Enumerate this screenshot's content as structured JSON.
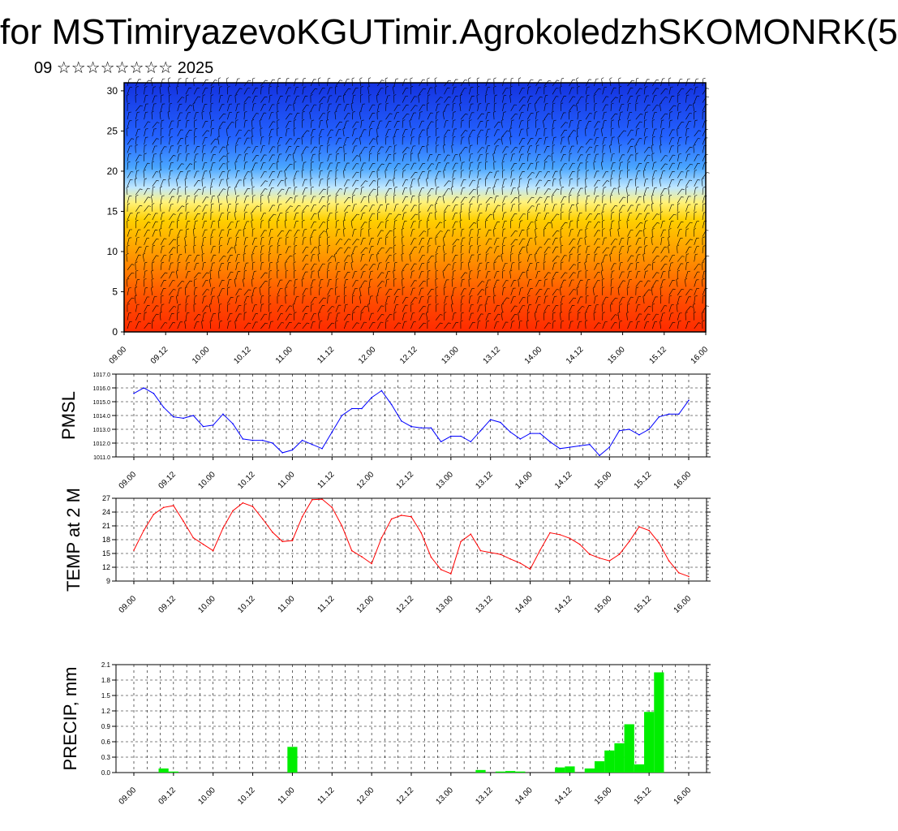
{
  "header": {
    "title": "for MSTimiryazevoKGUTimir.AgrokoledzhSKOMONRK(5",
    "subtitle": "09 ☆☆☆☆☆☆☆☆ 2025"
  },
  "chart_data": [
    {
      "id": "cross_section",
      "type": "heatmap",
      "ylim": [
        0,
        31
      ],
      "yticks": [
        "0",
        "5",
        "10",
        "15",
        "20",
        "25",
        "30"
      ],
      "xticks": [
        "09.00",
        "09.12",
        "10.00",
        "10.12",
        "11.00",
        "11.12",
        "12.00",
        "12.12",
        "13.00",
        "13.12",
        "14.00",
        "14.12",
        "15.00",
        "15.12",
        "16.00"
      ],
      "colors": {
        "low_level": "#ff2a00",
        "mid_level": "#ffd000",
        "high_level": "#1432e0",
        "wind_barbs": "#000000"
      }
    },
    {
      "id": "pmsl",
      "type": "line",
      "ylabel": "PMSL",
      "ylim": [
        1011.0,
        1017.0
      ],
      "yticks": [
        "1011.0",
        "1012.0",
        "1013.0",
        "1014.0",
        "1015.0",
        "1016.0",
        "1017.0"
      ],
      "xticks": [
        "09.00",
        "09.12",
        "10.00",
        "10.12",
        "11.00",
        "11.12",
        "12.00",
        "12.12",
        "13.00",
        "13.12",
        "14.00",
        "14.12",
        "15.00",
        "15.12",
        "16.00"
      ],
      "color": "#0000ff",
      "values": [
        1015.6,
        1016.0,
        1015.6,
        1014.6,
        1013.9,
        1013.8,
        1014.0,
        1013.2,
        1013.3,
        1014.1,
        1013.4,
        1012.3,
        1012.2,
        1012.2,
        1012.0,
        1011.3,
        1011.5,
        1012.2,
        1011.9,
        1011.6,
        1012.8,
        1014.0,
        1014.5,
        1014.5,
        1015.3,
        1015.8,
        1014.8,
        1013.6,
        1013.2,
        1013.1,
        1013.1,
        1012.1,
        1012.5,
        1012.5,
        1012.1,
        1012.9,
        1013.7,
        1013.5,
        1012.8,
        1012.3,
        1012.7,
        1012.7,
        1012.1,
        1011.6,
        1011.7,
        1011.8,
        1011.9,
        1011.1,
        1011.7,
        1012.9,
        1013.0,
        1012.6,
        1013.0,
        1013.9,
        1014.1,
        1014.1,
        1015.1
      ]
    },
    {
      "id": "temp2m",
      "type": "line",
      "ylabel": "TEMP at 2 M",
      "ylim": [
        9,
        27
      ],
      "yticks": [
        "9",
        "12",
        "15",
        "18",
        "21",
        "24",
        "27"
      ],
      "xticks": [
        "09.00",
        "09.12",
        "10.00",
        "10.12",
        "11.00",
        "11.12",
        "12.00",
        "12.12",
        "13.00",
        "13.12",
        "14.00",
        "14.12",
        "15.00",
        "15.12",
        "16.00"
      ],
      "color": "#ff0000",
      "values": [
        15.7,
        20.0,
        23.5,
        25.0,
        25.4,
        22.0,
        18.4,
        17.0,
        15.6,
        20.5,
        24.3,
        26.0,
        25.2,
        22.5,
        19.6,
        17.6,
        17.8,
        23.0,
        26.7,
        26.8,
        25.0,
        21.0,
        15.6,
        14.3,
        12.8,
        18.4,
        22.5,
        23.3,
        23.0,
        19.5,
        14.2,
        11.5,
        10.6,
        17.6,
        19.2,
        15.6,
        15.2,
        14.8,
        13.8,
        12.9,
        11.6,
        15.7,
        19.5,
        19.1,
        18.3,
        17.0,
        14.8,
        14.0,
        13.4,
        14.8,
        17.6,
        20.8,
        20.0,
        17.3,
        13.4,
        10.8,
        10.0
      ]
    },
    {
      "id": "precip",
      "type": "bar",
      "ylabel": "PRECIP, mm",
      "ylim": [
        0,
        2.1
      ],
      "yticks": [
        "0.0",
        "0.3",
        "0.6",
        "0.9",
        "1.2",
        "1.5",
        "1.8",
        "2.1"
      ],
      "xticks": [
        "09.00",
        "09.12",
        "10.00",
        "10.12",
        "11.00",
        "11.12",
        "12.00",
        "12.12",
        "13.00",
        "13.12",
        "14.00",
        "14.12",
        "15.00",
        "15.12",
        "16.00"
      ],
      "color": "#00ee00",
      "values": [
        0,
        0,
        0,
        0.08,
        0.02,
        0,
        0,
        0,
        0,
        0,
        0,
        0,
        0,
        0,
        0,
        0,
        0.5,
        0,
        0,
        0,
        0,
        0,
        0,
        0,
        0,
        0,
        0,
        0,
        0,
        0,
        0,
        0,
        0,
        0,
        0,
        0.05,
        0,
        0.02,
        0.03,
        0.02,
        0,
        0,
        0,
        0.1,
        0.12,
        0,
        0.08,
        0.22,
        0.43,
        0.57,
        0.94,
        0.16,
        1.18,
        1.95,
        0,
        0,
        0
      ]
    }
  ]
}
